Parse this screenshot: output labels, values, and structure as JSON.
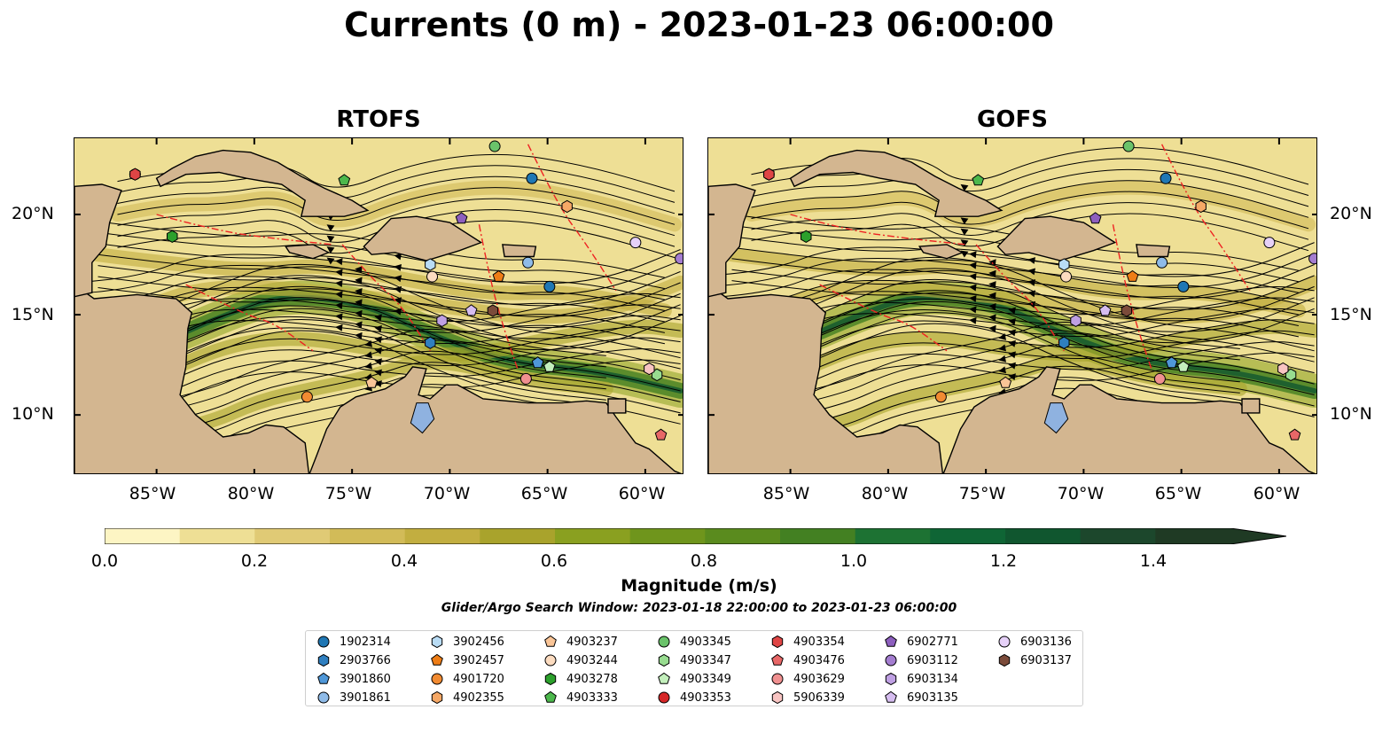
{
  "title": "Currents (0 m) - 2023-01-23 06:00:00",
  "panels": [
    {
      "title": "RTOFS"
    },
    {
      "title": "GOFS"
    }
  ],
  "lat_labels": [
    "20°N",
    "15°N",
    "10°N"
  ],
  "lon_labels": [
    "85°W",
    "80°W",
    "75°W",
    "70°W",
    "65°W",
    "60°W"
  ],
  "colorbar": {
    "label": "Magnitude (m/s)",
    "ticks": [
      "0.0",
      "0.2",
      "0.4",
      "0.6",
      "0.8",
      "1.0",
      "1.2",
      "1.4"
    ],
    "range": [
      0.0,
      1.5
    ],
    "step": 0.1,
    "extend": "max",
    "colors": [
      "#fdf5c4",
      "#eedf95",
      "#e0ca75",
      "#d2bb58",
      "#c2ae40",
      "#a9a32c",
      "#8aa020",
      "#6f951c",
      "#5a8b1e",
      "#438022",
      "#1d7233",
      "#0f6535",
      "#10562f",
      "#1c472c",
      "#1f3a24"
    ]
  },
  "search_window": "Glider/Argo Search Window: 2023-01-18 22:00:00 to 2023-01-23 06:00:00",
  "legend": {
    "items": [
      {
        "id": "1902314",
        "marker": "circle",
        "color": "#1f77b4"
      },
      {
        "id": "2903766",
        "marker": "hexagon",
        "color": "#2f7fc0"
      },
      {
        "id": "3901860",
        "marker": "pentagon",
        "color": "#4f97d8"
      },
      {
        "id": "3901861",
        "marker": "circle",
        "color": "#8fbbe8"
      },
      {
        "id": "3902456",
        "marker": "hexagon",
        "color": "#b9dcf5"
      },
      {
        "id": "3902457",
        "marker": "pentagon",
        "color": "#ee7d16"
      },
      {
        "id": "4901720",
        "marker": "circle",
        "color": "#f28b32"
      },
      {
        "id": "4902355",
        "marker": "hexagon",
        "color": "#f6a866"
      },
      {
        "id": "4903237",
        "marker": "pentagon",
        "color": "#fac597"
      },
      {
        "id": "4903244",
        "marker": "circle",
        "color": "#fcdcc0"
      },
      {
        "id": "4903278",
        "marker": "hexagon",
        "color": "#2ca02c"
      },
      {
        "id": "4903333",
        "marker": "pentagon",
        "color": "#4cb84c"
      },
      {
        "id": "4903345",
        "marker": "circle",
        "color": "#6ac36a"
      },
      {
        "id": "4903347",
        "marker": "hexagon",
        "color": "#98dc90"
      },
      {
        "id": "4903349",
        "marker": "pentagon",
        "color": "#c3efbc"
      },
      {
        "id": "4903353",
        "marker": "circle",
        "color": "#d62728"
      },
      {
        "id": "4903354",
        "marker": "hexagon",
        "color": "#df4545"
      },
      {
        "id": "4903476",
        "marker": "pentagon",
        "color": "#e86767"
      },
      {
        "id": "4903629",
        "marker": "circle",
        "color": "#f09090"
      },
      {
        "id": "5906339",
        "marker": "hexagon",
        "color": "#f8c4c2"
      },
      {
        "id": "6902771",
        "marker": "pentagon",
        "color": "#8d5fbe"
      },
      {
        "id": "6903112",
        "marker": "circle",
        "color": "#a47dd0"
      },
      {
        "id": "6903134",
        "marker": "hexagon",
        "color": "#bfa0e3"
      },
      {
        "id": "6903135",
        "marker": "pentagon",
        "color": "#d6bdf0"
      },
      {
        "id": "6903136",
        "marker": "circle",
        "color": "#e6d1f8"
      },
      {
        "id": "6903137",
        "marker": "hexagon",
        "color": "#7b4b3a"
      }
    ]
  },
  "colors": {
    "land": "#d3b690",
    "ocean_low": "#f6e9a8",
    "lake": "#8fb2e0",
    "eez": "#ee2222"
  },
  "features": {
    "basemap_width_deg": 31.2,
    "basemap_height_deg": 16.8,
    "land": [
      {
        "name": "central-america",
        "points": [
          [
            -89.2,
            13.8
          ],
          [
            -87.6,
            13.2
          ],
          [
            -86.0,
            12.3
          ],
          [
            -85.6,
            11.2
          ],
          [
            -85.7,
            10.2
          ],
          [
            -84.8,
            9.6
          ],
          [
            -83.5,
            8.5
          ],
          [
            -82.9,
            7.0
          ],
          [
            -89.2,
            7.0
          ]
        ]
      },
      {
        "name": "central-america-north",
        "points": [
          [
            -89.2,
            16.5
          ],
          [
            -88.2,
            15.8
          ],
          [
            -86.0,
            16.0
          ],
          [
            -84.0,
            15.8
          ],
          [
            -83.2,
            15.1
          ],
          [
            -83.4,
            14.3
          ],
          [
            -83.5,
            12.4
          ],
          [
            -83.8,
            11.0
          ],
          [
            -83.0,
            10.0
          ],
          [
            -81.6,
            8.9
          ],
          [
            -80.3,
            9.1
          ],
          [
            -79.4,
            9.5
          ],
          [
            -78.5,
            9.4
          ],
          [
            -77.4,
            8.6
          ],
          [
            -77.2,
            7.0
          ],
          [
            -89.2,
            7.0
          ]
        ]
      },
      {
        "name": "south-america",
        "points": [
          [
            -77.2,
            7.0
          ],
          [
            -76.8,
            8.0
          ],
          [
            -76.3,
            9.3
          ],
          [
            -75.6,
            10.4
          ],
          [
            -74.8,
            10.9
          ],
          [
            -73.3,
            11.3
          ],
          [
            -72.3,
            11.9
          ],
          [
            -71.9,
            12.4
          ],
          [
            -71.2,
            12.3
          ],
          [
            -71.6,
            11.0
          ],
          [
            -71.0,
            10.8
          ],
          [
            -70.2,
            11.5
          ],
          [
            -69.6,
            11.5
          ],
          [
            -68.3,
            10.8
          ],
          [
            -66.0,
            10.6
          ],
          [
            -64.3,
            10.6
          ],
          [
            -63.0,
            10.7
          ],
          [
            -62.0,
            10.6
          ],
          [
            -61.5,
            9.9
          ],
          [
            -60.5,
            8.6
          ],
          [
            -59.8,
            8.3
          ],
          [
            -58.5,
            7.2
          ],
          [
            -58.0,
            7.0
          ]
        ]
      },
      {
        "name": "cuba",
        "points": [
          [
            -85.0,
            21.8
          ],
          [
            -84.2,
            22.3
          ],
          [
            -83.0,
            22.9
          ],
          [
            -81.6,
            23.2
          ],
          [
            -80.2,
            23.1
          ],
          [
            -78.8,
            22.6
          ],
          [
            -77.6,
            21.9
          ],
          [
            -76.4,
            21.3
          ],
          [
            -75.0,
            20.7
          ],
          [
            -74.2,
            20.2
          ],
          [
            -75.4,
            19.9
          ],
          [
            -77.6,
            19.9
          ],
          [
            -77.4,
            20.7
          ],
          [
            -78.6,
            21.5
          ],
          [
            -80.4,
            21.8
          ],
          [
            -81.8,
            22.1
          ],
          [
            -83.5,
            22.0
          ],
          [
            -84.8,
            21.4
          ]
        ]
      },
      {
        "name": "hispaniola",
        "points": [
          [
            -74.4,
            18.4
          ],
          [
            -73.0,
            19.8
          ],
          [
            -71.7,
            19.9
          ],
          [
            -70.0,
            19.6
          ],
          [
            -68.4,
            18.6
          ],
          [
            -69.5,
            18.2
          ],
          [
            -71.2,
            17.7
          ],
          [
            -72.8,
            18.1
          ],
          [
            -74.0,
            18.0
          ]
        ]
      },
      {
        "name": "puerto-rico",
        "points": [
          [
            -67.3,
            18.5
          ],
          [
            -65.6,
            18.4
          ],
          [
            -65.7,
            17.9
          ],
          [
            -67.2,
            17.9
          ]
        ]
      },
      {
        "name": "jamaica",
        "points": [
          [
            -78.4,
            18.4
          ],
          [
            -77.0,
            18.5
          ],
          [
            -76.2,
            18.1
          ],
          [
            -77.0,
            17.8
          ],
          [
            -78.2,
            18.1
          ]
        ]
      },
      {
        "name": "trinidad",
        "points": [
          [
            -61.9,
            10.8
          ],
          [
            -61.0,
            10.8
          ],
          [
            -61.0,
            10.1
          ],
          [
            -61.9,
            10.1
          ]
        ]
      },
      {
        "name": "yucatan",
        "points": [
          [
            -89.2,
            21.4
          ],
          [
            -87.8,
            21.5
          ],
          [
            -86.8,
            21.2
          ],
          [
            -87.4,
            19.6
          ],
          [
            -87.6,
            18.4
          ],
          [
            -88.3,
            17.6
          ],
          [
            -88.3,
            16.1
          ],
          [
            -89.2,
            15.9
          ]
        ]
      }
    ],
    "lakes": [
      {
        "name": "lake-maracaibo",
        "points": [
          [
            -71.7,
            10.6
          ],
          [
            -71.1,
            10.6
          ],
          [
            -70.8,
            9.8
          ],
          [
            -71.4,
            9.1
          ],
          [
            -72.0,
            9.6
          ]
        ]
      }
    ],
    "currents": [
      {
        "jet": true,
        "points": [
          [
            -89.0,
            13.0
          ],
          [
            -85.0,
            13.5
          ],
          [
            -81.5,
            15.0
          ],
          [
            -78.5,
            16.0
          ],
          [
            -74.5,
            15.6
          ],
          [
            -71.0,
            14.0
          ],
          [
            -67.0,
            12.6
          ],
          [
            -62.5,
            12.2
          ],
          [
            -58.2,
            11.2
          ]
        ]
      },
      {
        "jet": false,
        "points": [
          [
            -88.0,
            18.0
          ],
          [
            -84.0,
            17.5
          ],
          [
            -80.0,
            17.2
          ],
          [
            -76.5,
            17.5
          ],
          [
            -72.5,
            16.8
          ],
          [
            -68.0,
            16.0
          ],
          [
            -64.0,
            16.2
          ],
          [
            -59.0,
            15.2
          ]
        ]
      },
      {
        "jet": false,
        "points": [
          [
            -87.5,
            11.0
          ],
          [
            -84.5,
            12.2
          ],
          [
            -81.0,
            13.6
          ],
          [
            -77.5,
            13.9
          ],
          [
            -73.5,
            13.2
          ],
          [
            -69.0,
            12.9
          ],
          [
            -65.0,
            13.8
          ],
          [
            -60.5,
            14.5
          ],
          [
            -58.2,
            14.2
          ]
        ]
      },
      {
        "jet": false,
        "points": [
          [
            -87.0,
            20.0
          ],
          [
            -84.5,
            20.5
          ],
          [
            -81.5,
            20.5
          ],
          [
            -78.5,
            21.0
          ],
          [
            -76.0,
            19.3
          ],
          [
            -72.0,
            20.9
          ],
          [
            -67.5,
            21.5
          ],
          [
            -63.0,
            20.8
          ],
          [
            -58.5,
            19.5
          ]
        ]
      },
      {
        "jet": false,
        "points": [
          [
            -88.5,
            15.0
          ],
          [
            -86.0,
            15.2
          ],
          [
            -83.0,
            16.3
          ],
          [
            -79.5,
            16.4
          ],
          [
            -75.5,
            16.0
          ],
          [
            -70.0,
            15.4
          ],
          [
            -66.0,
            14.8
          ],
          [
            -62.0,
            15.1
          ],
          [
            -58.2,
            16.6
          ]
        ]
      },
      {
        "jet": false,
        "points": [
          [
            -86.0,
            8.8
          ],
          [
            -82.5,
            9.5
          ],
          [
            -79.8,
            10.7
          ],
          [
            -77.0,
            11.3
          ],
          [
            -74.0,
            11.9
          ],
          [
            -71.0,
            12.9
          ],
          [
            -66.0,
            11.7
          ],
          [
            -62.0,
            11.3
          ]
        ]
      }
    ],
    "floats": [
      {
        "id": "1902314",
        "lon": -65.8,
        "lat": 21.8
      },
      {
        "id": "1902314",
        "lon": -64.9,
        "lat": 16.4
      },
      {
        "id": "2903766",
        "lon": -71.0,
        "lat": 13.6
      },
      {
        "id": "3901860",
        "lon": -65.5,
        "lat": 12.6
      },
      {
        "id": "3901861",
        "lon": -66.0,
        "lat": 17.6
      },
      {
        "id": "3902456",
        "lon": -71.0,
        "lat": 17.5
      },
      {
        "id": "3902457",
        "lon": -67.5,
        "lat": 16.9
      },
      {
        "id": "4901720",
        "lon": -77.3,
        "lat": 10.9
      },
      {
        "id": "4902355",
        "lon": -64.0,
        "lat": 20.4
      },
      {
        "id": "4903237",
        "lon": -74.0,
        "lat": 11.6
      },
      {
        "id": "4903244",
        "lon": -70.9,
        "lat": 16.9
      },
      {
        "id": "4903278",
        "lon": -84.2,
        "lat": 18.9
      },
      {
        "id": "4903333",
        "lon": -75.4,
        "lat": 21.7
      },
      {
        "id": "4903345",
        "lon": -67.7,
        "lat": 23.4
      },
      {
        "id": "4903347",
        "lon": -59.4,
        "lat": 12.0
      },
      {
        "id": "4903349",
        "lon": -64.9,
        "lat": 12.4
      },
      {
        "id": "4903353",
        "lon": -86.1,
        "lat": 22.0
      },
      {
        "id": "4903354",
        "lon": -86.1,
        "lat": 22.0
      },
      {
        "id": "4903476",
        "lon": -59.2,
        "lat": 9.0
      },
      {
        "id": "4903629",
        "lon": -66.1,
        "lat": 11.8
      },
      {
        "id": "5906339",
        "lon": -59.8,
        "lat": 12.3
      },
      {
        "id": "6902771",
        "lon": -69.4,
        "lat": 19.8
      },
      {
        "id": "6903112",
        "lon": -58.2,
        "lat": 17.8
      },
      {
        "id": "6903134",
        "lon": -70.4,
        "lat": 14.7
      },
      {
        "id": "6903135",
        "lon": -68.9,
        "lat": 15.2
      },
      {
        "id": "6903136",
        "lon": -60.5,
        "lat": 18.6
      },
      {
        "id": "6903137",
        "lon": -67.8,
        "lat": 15.2
      }
    ]
  }
}
